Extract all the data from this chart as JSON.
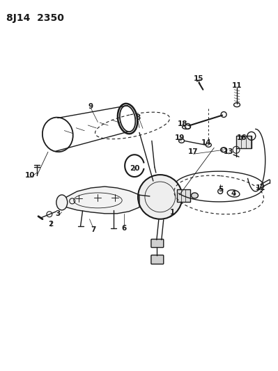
{
  "title": "8J14  2350",
  "background_color": "#ffffff",
  "line_color": "#1a1a1a",
  "title_fontsize": 10,
  "label_fontsize": 7.5,
  "figsize": [
    3.99,
    5.33
  ],
  "dpi": 100,
  "labels": [
    [
      248,
      305,
      "1"
    ],
    [
      72,
      322,
      "2"
    ],
    [
      82,
      307,
      "3"
    ],
    [
      336,
      278,
      "4"
    ],
    [
      318,
      272,
      "5"
    ],
    [
      178,
      328,
      "6"
    ],
    [
      133,
      330,
      "7"
    ],
    [
      198,
      168,
      "8"
    ],
    [
      130,
      152,
      "9"
    ],
    [
      42,
      252,
      "10"
    ],
    [
      341,
      122,
      "11"
    ],
    [
      375,
      270,
      "12"
    ],
    [
      329,
      218,
      "13"
    ],
    [
      297,
      205,
      "14"
    ],
    [
      286,
      112,
      "15"
    ],
    [
      348,
      198,
      "16"
    ],
    [
      278,
      218,
      "17"
    ],
    [
      263,
      178,
      "18"
    ],
    [
      258,
      198,
      "19"
    ],
    [
      193,
      242,
      "20"
    ]
  ]
}
